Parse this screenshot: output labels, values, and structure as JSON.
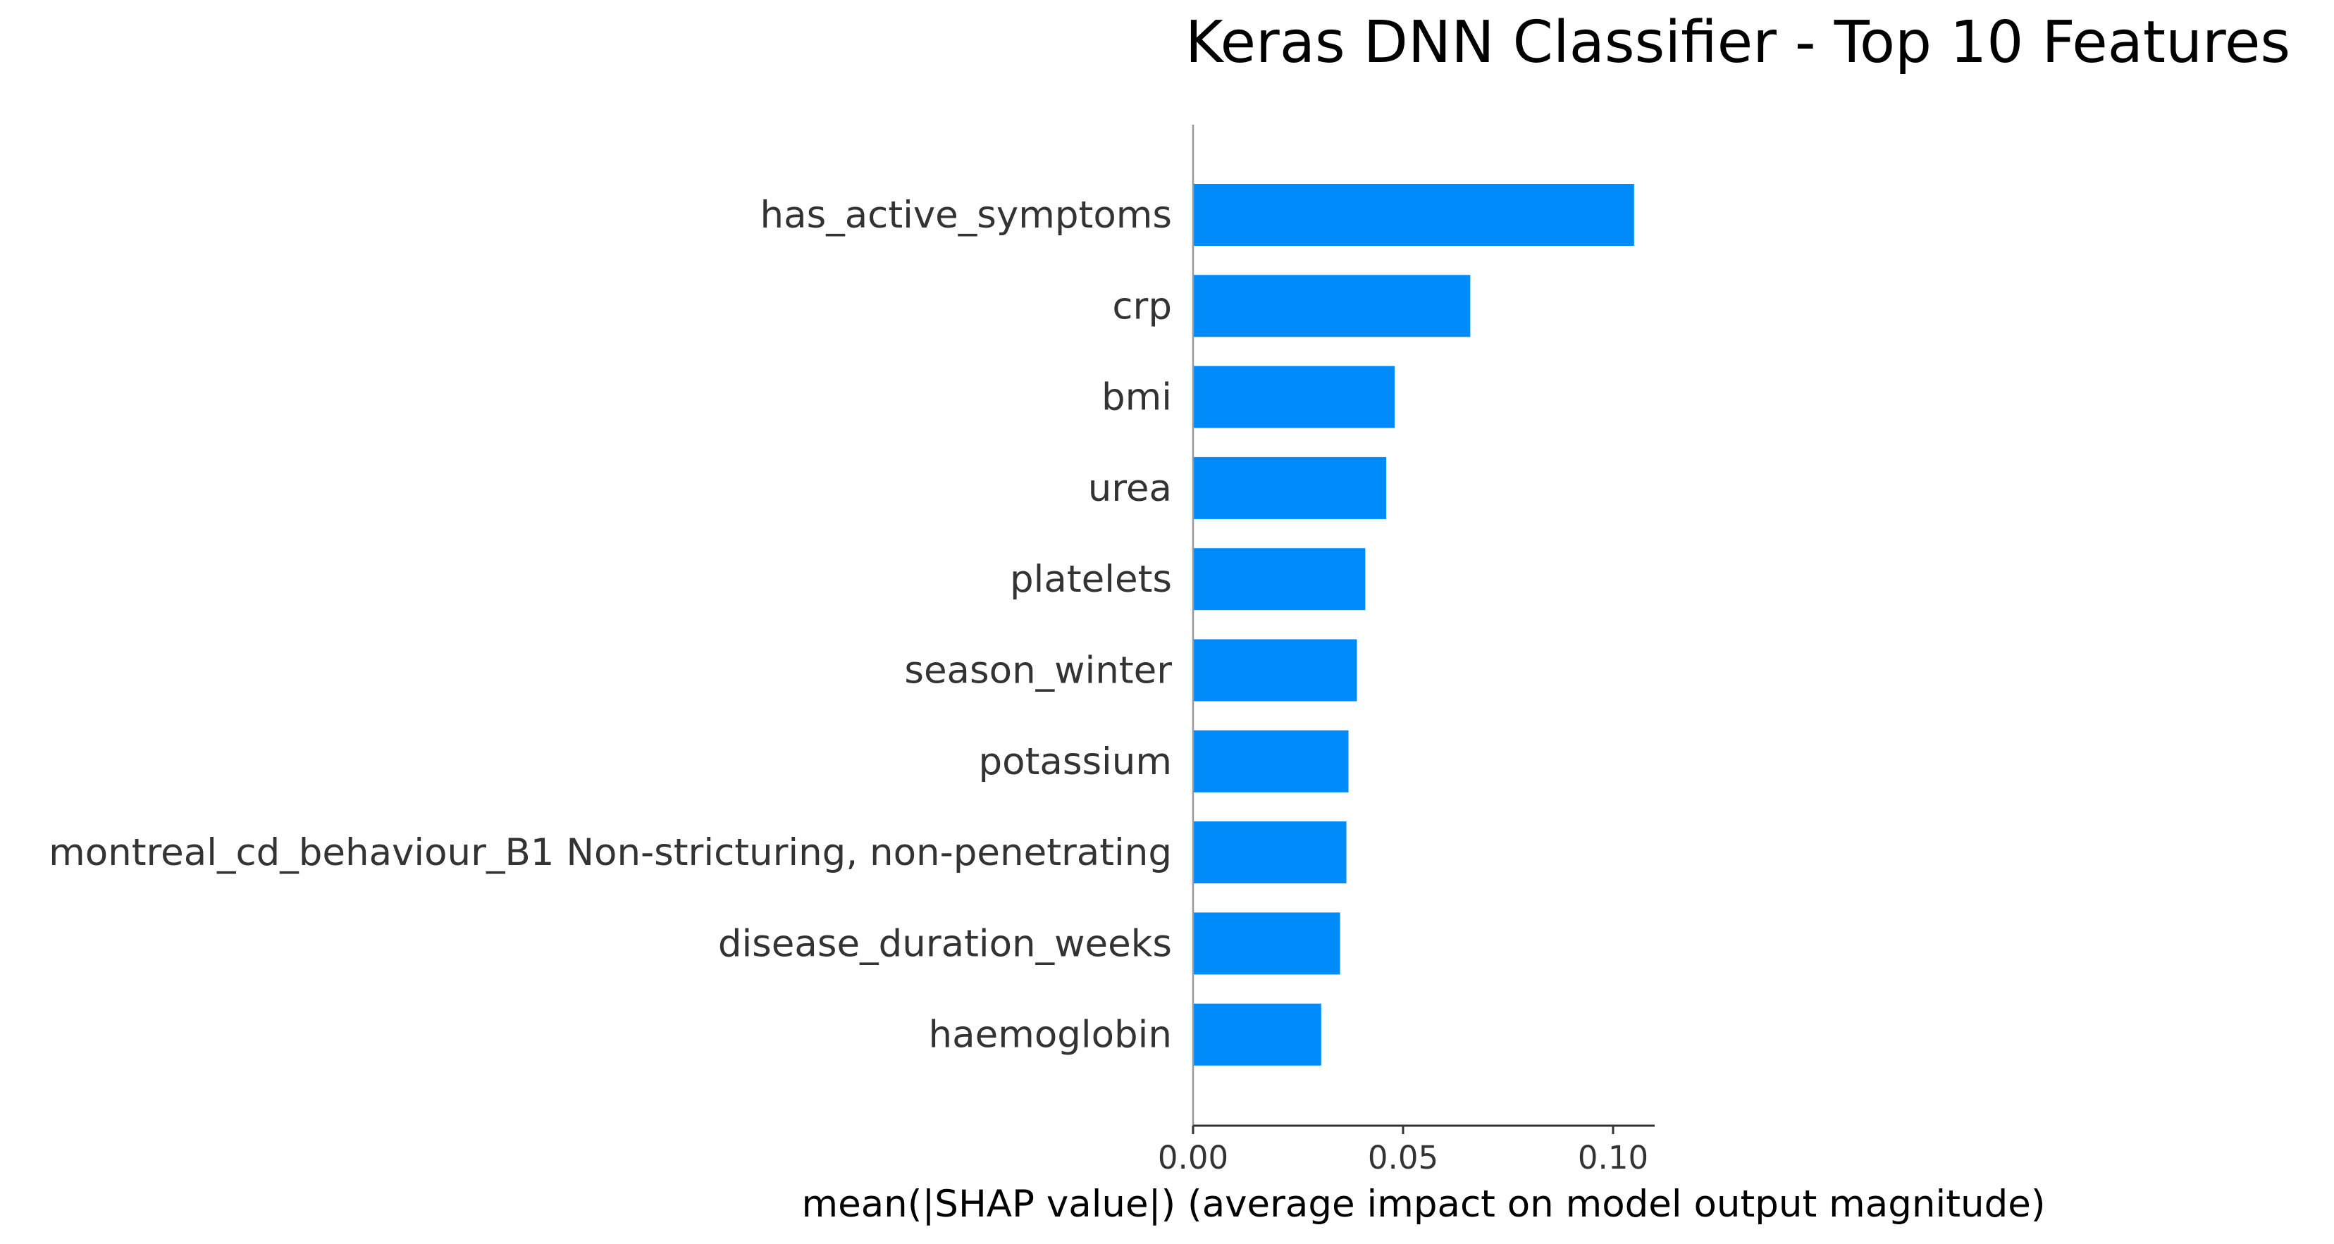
{
  "chart_data": {
    "type": "bar",
    "orientation": "horizontal",
    "title": "Keras DNN Classifier - Top 10 Features",
    "xlabel": "mean(|SHAP value|) (average impact on model output magnitude)",
    "ylabel": "",
    "categories": [
      "has_active_symptoms",
      "crp",
      "bmi",
      "urea",
      "platelets",
      "season_winter",
      "potassium",
      "montreal_cd_behaviour_B1 Non-stricturing, non-penetrating",
      "disease_duration_weeks",
      "haemoglobin"
    ],
    "values": [
      0.105,
      0.066,
      0.048,
      0.046,
      0.041,
      0.039,
      0.037,
      0.0365,
      0.035,
      0.0305
    ],
    "xlim": [
      0,
      0.11
    ],
    "xticks": [
      0,
      0.05,
      0.1
    ],
    "xtick_labels": [
      "0.00",
      "0.05",
      "0.10"
    ],
    "grid": false,
    "bar_color": "#008bfb"
  }
}
